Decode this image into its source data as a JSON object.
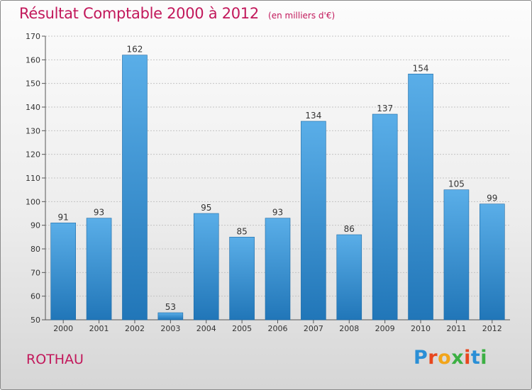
{
  "title": "Résultat Comptable 2000 à 2012",
  "subtitle": "(en milliers d'€)",
  "place_name": "ROTHAU",
  "logo": {
    "text": "Proxiti",
    "letters": [
      "P",
      "r",
      "o",
      "x",
      "i",
      "t",
      "i"
    ],
    "colors": [
      "#2a8fd6",
      "#e8471e",
      "#f2a51a",
      "#3cb043",
      "#e8471e",
      "#2a8fd6",
      "#3cb043"
    ]
  },
  "colors": {
    "bar_top": "#5aaee8",
    "bar_bottom": "#2176b8",
    "title": "#c2185b"
  },
  "chart_data": {
    "type": "bar",
    "title": "Résultat Comptable 2000 à 2012",
    "subtitle": "(en milliers d'€)",
    "xlabel": "",
    "ylabel": "",
    "categories": [
      "2000",
      "2001",
      "2002",
      "2003",
      "2004",
      "2005",
      "2006",
      "2007",
      "2008",
      "2009",
      "2010",
      "2011",
      "2012"
    ],
    "values": [
      91,
      93,
      162,
      53,
      95,
      85,
      93,
      134,
      86,
      137,
      154,
      105,
      99
    ],
    "ylim": [
      50,
      170
    ],
    "yticks": [
      50,
      60,
      70,
      80,
      90,
      100,
      110,
      120,
      130,
      140,
      150,
      160,
      170
    ],
    "grid": true
  }
}
